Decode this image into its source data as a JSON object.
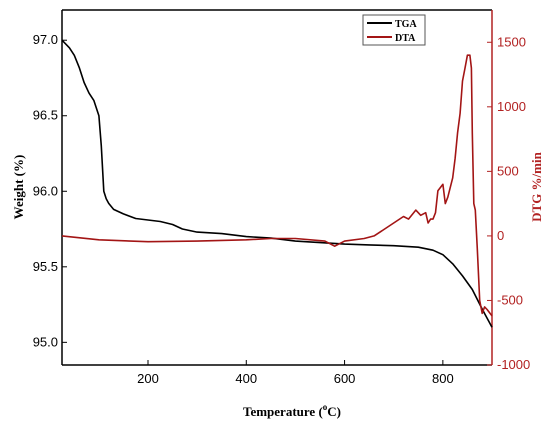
{
  "chart_data": {
    "type": "line",
    "xlabel": "Temperature (",
    "xlabel_sup": "o",
    "xlabel_unit": "C)",
    "ylabel": "Weight  (%)",
    "y2label": "DTG %/min",
    "xlim": [
      25,
      900
    ],
    "ylim": [
      94.85,
      97.2
    ],
    "y2lim": [
      -1000,
      1750
    ],
    "x_ticks": [
      200,
      400,
      600,
      800
    ],
    "y_ticks": [
      95.0,
      95.5,
      96.0,
      96.5,
      97.0
    ],
    "y_tick_labels": [
      "95.0",
      "95.5",
      "96.0",
      "96.5",
      "97.0"
    ],
    "y2_ticks": [
      -1000,
      -500,
      0,
      500,
      1000,
      1500
    ],
    "legend_position": "top-right",
    "colors": {
      "left_axis": "#000000",
      "right_axis": "#b22222",
      "tga": "#000000",
      "dta": "#a31515"
    },
    "series": [
      {
        "name": "TGA",
        "axis": "left",
        "x": [
          25,
          40,
          50,
          60,
          70,
          80,
          90,
          100,
          105,
          110,
          115,
          120,
          130,
          150,
          175,
          200,
          225,
          250,
          270,
          300,
          350,
          400,
          450,
          500,
          550,
          600,
          650,
          700,
          750,
          780,
          800,
          820,
          840,
          860,
          880,
          900
        ],
        "y": [
          97.0,
          96.95,
          96.9,
          96.82,
          96.72,
          96.65,
          96.6,
          96.5,
          96.3,
          96.0,
          95.95,
          95.92,
          95.88,
          95.85,
          95.82,
          95.81,
          95.8,
          95.78,
          95.75,
          95.73,
          95.72,
          95.7,
          95.69,
          95.67,
          95.66,
          95.65,
          95.645,
          95.64,
          95.63,
          95.61,
          95.58,
          95.52,
          95.44,
          95.35,
          95.22,
          95.1
        ]
      },
      {
        "name": "DTA",
        "axis": "right",
        "x": [
          25,
          100,
          200,
          300,
          400,
          450,
          500,
          560,
          580,
          600,
          640,
          660,
          680,
          700,
          720,
          730,
          745,
          755,
          765,
          770,
          775,
          780,
          785,
          790,
          800,
          805,
          810,
          820,
          825,
          830,
          835,
          840,
          845,
          850,
          855,
          858,
          860,
          863,
          866,
          870,
          875,
          880,
          885,
          890,
          900
        ],
        "y": [
          0,
          -30,
          -45,
          -40,
          -30,
          -20,
          -20,
          -40,
          -80,
          -40,
          -20,
          0,
          50,
          100,
          150,
          130,
          200,
          160,
          180,
          100,
          130,
          130,
          180,
          350,
          400,
          250,
          300,
          450,
          600,
          800,
          950,
          1200,
          1300,
          1400,
          1400,
          1300,
          800,
          250,
          200,
          -100,
          -500,
          -600,
          -550,
          -570,
          -620
        ]
      }
    ]
  }
}
